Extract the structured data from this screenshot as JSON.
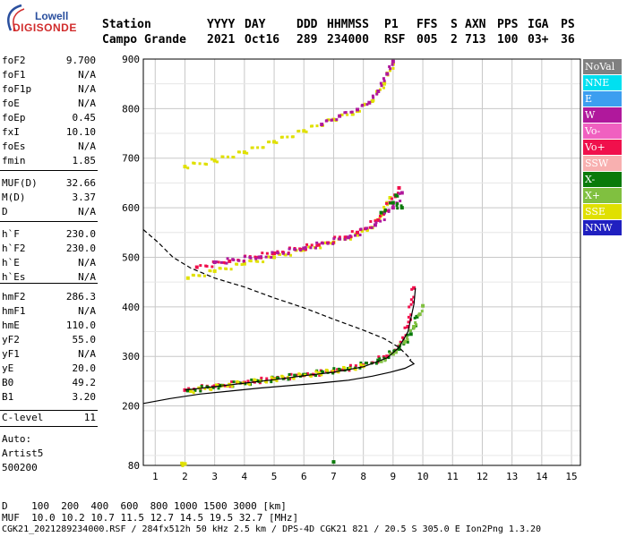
{
  "logo": {
    "top": "Lowell",
    "bottom": "DIGISONDE"
  },
  "header": {
    "labels": [
      "Station",
      "YYYY",
      "DAY",
      "DDD",
      "HHMMSS",
      "P1",
      "FFS",
      "S",
      "AXN",
      "PPS",
      "IGA",
      "PS"
    ],
    "values": [
      "Campo Grande",
      "2021",
      "Oct16",
      "289",
      "234000",
      "RSF",
      "005",
      "2",
      "713",
      "100",
      "03+",
      "36"
    ]
  },
  "params": [
    {
      "k": "foF2",
      "v": "9.700"
    },
    {
      "k": "foF1",
      "v": "N/A"
    },
    {
      "k": "foF1p",
      "v": "N/A"
    },
    {
      "k": "foE",
      "v": "N/A"
    },
    {
      "k": "foEp",
      "v": "0.45"
    },
    {
      "k": "fxI",
      "v": "10.10"
    },
    {
      "k": "foEs",
      "v": "N/A"
    },
    {
      "k": "fmin",
      "v": "1.85"
    },
    {
      "k": "MUF(D)",
      "v": "32.66"
    },
    {
      "k": "M(D)",
      "v": "3.37"
    },
    {
      "k": "D",
      "v": "N/A"
    },
    {
      "k": "h`F",
      "v": "230.0"
    },
    {
      "k": "h`F2",
      "v": "230.0"
    },
    {
      "k": "h`E",
      "v": "N/A"
    },
    {
      "k": "h`Es",
      "v": "N/A"
    },
    {
      "k": "hmF2",
      "v": "286.3"
    },
    {
      "k": "hmF1",
      "v": "N/A"
    },
    {
      "k": "hmE",
      "v": "110.0"
    },
    {
      "k": "yF2",
      "v": "55.0"
    },
    {
      "k": "yF1",
      "v": "N/A"
    },
    {
      "k": "yE",
      "v": "20.0"
    },
    {
      "k": "B0",
      "v": "49.2"
    },
    {
      "k": "B1",
      "v": "3.20"
    },
    {
      "k": "C-level",
      "v": "11"
    }
  ],
  "auto": {
    "l1": "Auto:",
    "l2": "Artist5",
    "l3": "500200"
  },
  "legend": [
    {
      "label": "NoVal",
      "color": "#808080"
    },
    {
      "label": "NNE",
      "color": "#00e0f0"
    },
    {
      "label": "E",
      "color": "#3c9ef0"
    },
    {
      "label": "W",
      "color": "#b0189c"
    },
    {
      "label": "Vo-",
      "color": "#f060c0"
    },
    {
      "label": "Vo+",
      "color": "#f0104c"
    },
    {
      "label": "SSW",
      "color": "#f8b0b0"
    },
    {
      "label": "X-",
      "color": "#0a7a0a"
    },
    {
      "label": "X+",
      "color": "#80c040"
    },
    {
      "label": "SSE",
      "color": "#e0e000"
    },
    {
      "label": "NNW",
      "color": "#2020c0"
    }
  ],
  "bottom": {
    "d_line": "D    100  200  400  600  800 1000 1500 3000 [km]",
    "muf_line": "MUF  10.0 10.2 10.7 11.5 12.7 14.5 19.5 32.7 [MHz]",
    "file_line": "CGK21_2021289234000.RSF / 284fx512h 50 kHz 2.5 km / DPS-4D CGK21 821 / 20.5 S 305.0 E Ion2Png 1.3.20"
  },
  "chart_data": {
    "type": "scatter",
    "xlabel": "",
    "ylabel": "",
    "xlim": [
      0.6,
      15.3
    ],
    "ylim": [
      80,
      900
    ],
    "xticks": [
      1,
      2,
      3,
      4,
      5,
      6,
      7,
      8,
      9,
      10,
      11,
      12,
      13,
      14,
      15
    ],
    "yticks": [
      80,
      200,
      300,
      400,
      500,
      600,
      700,
      800,
      900
    ],
    "grid": true,
    "series": [
      {
        "color": "#f0104c",
        "points": [
          [
            2.0,
            232
          ],
          [
            3.0,
            240
          ],
          [
            4.0,
            247
          ],
          [
            5.0,
            255
          ],
          [
            6.0,
            262
          ],
          [
            7.0,
            270
          ],
          [
            8.0,
            282
          ],
          [
            8.8,
            300
          ],
          [
            9.2,
            320
          ],
          [
            9.5,
            360
          ],
          [
            9.7,
            438
          ]
        ]
      },
      {
        "color": "#0a7a0a",
        "points": [
          [
            2.1,
            231
          ],
          [
            3.2,
            241
          ],
          [
            4.5,
            250
          ],
          [
            6.0,
            263
          ],
          [
            7.5,
            275
          ],
          [
            8.5,
            292
          ],
          [
            9.2,
            315
          ],
          [
            9.6,
            345
          ],
          [
            9.8,
            380
          ]
        ]
      },
      {
        "color": "#80c040",
        "points": [
          [
            8.6,
            290
          ],
          [
            9.0,
            305
          ],
          [
            9.4,
            330
          ],
          [
            9.7,
            360
          ],
          [
            9.9,
            385
          ],
          [
            10.0,
            402
          ]
        ]
      },
      {
        "color": "#e0e000",
        "points": [
          [
            2.2,
            230
          ],
          [
            3.5,
            243
          ],
          [
            5.0,
            254
          ],
          [
            6.5,
            266
          ],
          [
            8.0,
            280
          ],
          [
            1.9,
            84
          ],
          [
            2.0,
            83
          ]
        ]
      },
      {
        "color": "#e0e000",
        "points": [
          [
            2.1,
            458
          ],
          [
            3.0,
            472
          ],
          [
            4.0,
            487
          ],
          [
            5.0,
            500
          ],
          [
            6.0,
            515
          ],
          [
            7.0,
            530
          ],
          [
            7.8,
            545
          ],
          [
            8.3,
            560
          ],
          [
            8.6,
            585
          ],
          [
            8.9,
            620
          ]
        ]
      },
      {
        "color": "#f0104c",
        "points": [
          [
            2.4,
            480
          ],
          [
            3.5,
            492
          ],
          [
            5.0,
            508
          ],
          [
            6.5,
            525
          ],
          [
            7.8,
            550
          ],
          [
            8.5,
            575
          ],
          [
            8.9,
            610
          ],
          [
            9.2,
            640
          ]
        ]
      },
      {
        "color": "#b0189c",
        "points": [
          [
            3.0,
            490
          ],
          [
            4.5,
            500
          ],
          [
            6.0,
            518
          ],
          [
            7.5,
            540
          ],
          [
            8.4,
            565
          ],
          [
            9.0,
            600
          ],
          [
            9.3,
            630
          ]
        ]
      },
      {
        "color": "#0a7a0a",
        "points": [
          [
            8.6,
            590
          ],
          [
            9.0,
            610
          ],
          [
            9.3,
            600
          ],
          [
            9.1,
            625
          ]
        ]
      },
      {
        "color": "#e0e000",
        "points": [
          [
            2.0,
            683
          ],
          [
            3.0,
            695
          ],
          [
            4.0,
            712
          ],
          [
            5.0,
            733
          ],
          [
            6.0,
            755
          ],
          [
            7.0,
            778
          ],
          [
            7.8,
            795
          ],
          [
            8.3,
            815
          ],
          [
            8.7,
            850
          ],
          [
            9.0,
            890
          ]
        ]
      },
      {
        "color": "#b0189c",
        "points": [
          [
            6.6,
            768
          ],
          [
            7.2,
            785
          ],
          [
            7.8,
            798
          ],
          [
            8.2,
            812
          ],
          [
            8.5,
            835
          ],
          [
            8.8,
            870
          ],
          [
            9.0,
            895
          ]
        ]
      },
      {
        "color": "#0a7a0a",
        "points": [
          [
            7.0,
            87
          ]
        ]
      }
    ],
    "curves": [
      {
        "style": "solid",
        "color": "#000",
        "points": [
          [
            0.6,
            205
          ],
          [
            1.5,
            215
          ],
          [
            2.5,
            224
          ],
          [
            3.5,
            230
          ],
          [
            4.5,
            236
          ],
          [
            5.5,
            241
          ],
          [
            6.5,
            246
          ],
          [
            7.5,
            252
          ],
          [
            8.3,
            260
          ],
          [
            8.9,
            268
          ],
          [
            9.4,
            276
          ],
          [
            9.7,
            285
          ],
          [
            9.55,
            293
          ]
        ]
      },
      {
        "style": "solid",
        "color": "#000",
        "points": [
          [
            2.0,
            232
          ],
          [
            3.0,
            239
          ],
          [
            4.0,
            246
          ],
          [
            5.0,
            253
          ],
          [
            6.0,
            261
          ],
          [
            7.0,
            268
          ],
          [
            8.0,
            279
          ],
          [
            8.8,
            297
          ],
          [
            9.2,
            318
          ],
          [
            9.5,
            350
          ],
          [
            9.7,
            405
          ],
          [
            9.75,
            438
          ]
        ]
      },
      {
        "style": "dashed",
        "color": "#000",
        "points": [
          [
            0.6,
            556
          ],
          [
            1.1,
            530
          ],
          [
            1.6,
            500
          ],
          [
            2.2,
            478
          ],
          [
            3.0,
            458
          ],
          [
            4.0,
            440
          ],
          [
            5.0,
            418
          ],
          [
            6.0,
            398
          ],
          [
            7.0,
            375
          ],
          [
            8.0,
            353
          ],
          [
            8.7,
            336
          ],
          [
            9.2,
            318
          ],
          [
            9.5,
            300
          ],
          [
            9.6,
            293
          ]
        ]
      }
    ]
  }
}
